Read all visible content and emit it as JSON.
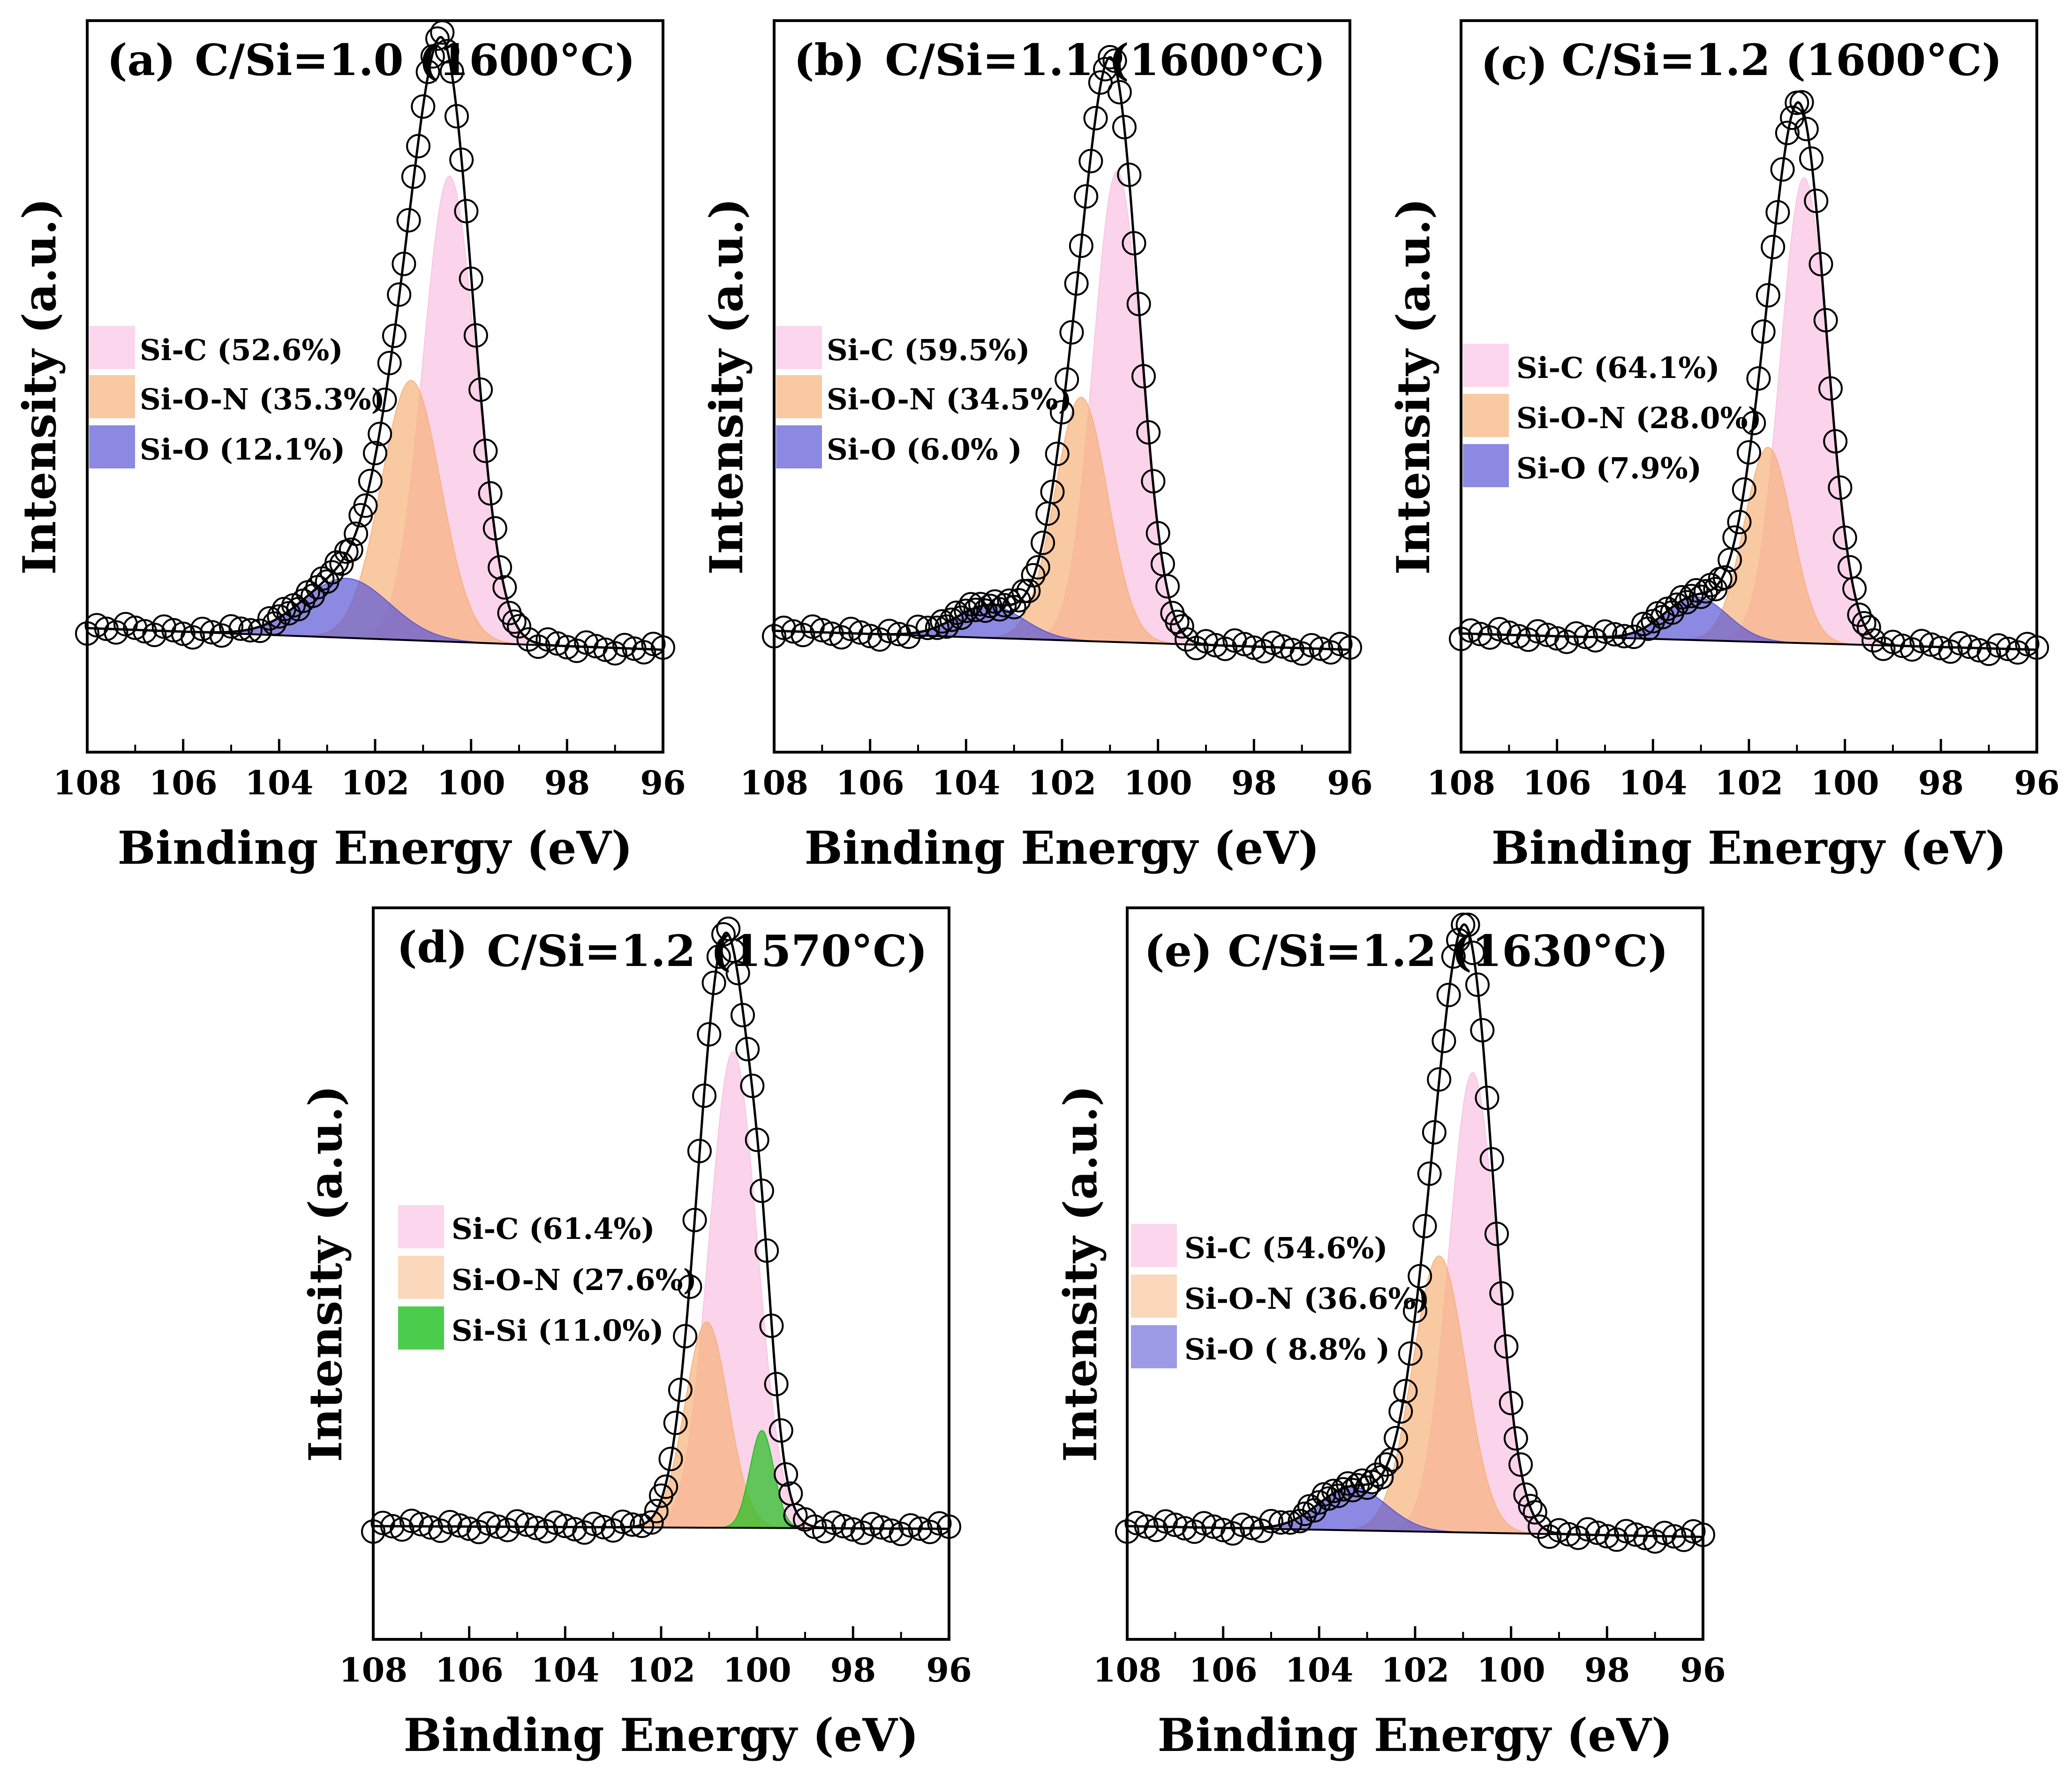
{
  "figure": {
    "shared": {
      "xlabel": "Binding Energy (eV)",
      "ylabel": "Intensity (a.u.)",
      "x_ticks": [
        "108",
        "106",
        "104",
        "102",
        "100",
        "98",
        "96"
      ],
      "xlim": [
        108,
        96
      ]
    },
    "colors": {
      "Si-C": "#f9c4e4",
      "Si-O-N": "#f7b27a",
      "Si-O": "#5b57d6",
      "Si-Si": "#1fbf1f",
      "fit": "#000000",
      "data": "#000000"
    }
  },
  "chart_data": [
    {
      "type": "line",
      "panel": "(a)",
      "title": "C/Si=1.0 (1600°C)",
      "xlabel": "Binding Energy (eV)",
      "ylabel": "Intensity (a.u.)",
      "xlim": [
        108,
        96
      ],
      "peak_x": 100.6,
      "baseline_left": 0.04,
      "baseline_right": 0.0,
      "components": [
        {
          "name": "Si-C",
          "label": "Si-C (52.6%)",
          "center": 100.45,
          "height": 0.86,
          "sigma": 0.55
        },
        {
          "name": "Si-O-N",
          "label": "Si-O-N (35.3%)",
          "center": 101.25,
          "height": 0.48,
          "sigma": 0.62
        },
        {
          "name": "Si-O",
          "label": "Si-O (12.1%)",
          "center": 102.6,
          "height": 0.11,
          "sigma": 0.9
        }
      ]
    },
    {
      "type": "line",
      "panel": "(b)",
      "title": "C/Si=1.1 (1600°C)",
      "xlabel": "Binding Energy (eV)",
      "ylabel": "Intensity (a.u.)",
      "xlim": [
        108,
        96
      ],
      "peak_x": 100.9,
      "baseline_left": 0.035,
      "baseline_right": 0.0,
      "components": [
        {
          "name": "Si-C",
          "label": "Si-C (59.5%)",
          "center": 100.85,
          "height": 0.87,
          "sigma": 0.5
        },
        {
          "name": "Si-O-N",
          "label": "Si-O-N (34.5%)",
          "center": 101.6,
          "height": 0.45,
          "sigma": 0.55
        },
        {
          "name": "Si-O",
          "label": "Si-O (6.0% )",
          "center": 103.5,
          "height": 0.06,
          "sigma": 0.7
        }
      ]
    },
    {
      "type": "line",
      "panel": "(c)",
      "title": "C/Si=1.2 (1600°C)",
      "xlabel": "Binding Energy (eV)",
      "ylabel": "Intensity (a.u.)",
      "xlim": [
        108,
        96
      ],
      "peak_x": 100.9,
      "baseline_left": 0.03,
      "baseline_right": 0.0,
      "components": [
        {
          "name": "Si-C",
          "label": "Si-C (64.1%)",
          "center": 100.85,
          "height": 0.86,
          "sigma": 0.5
        },
        {
          "name": "Si-O-N",
          "label": "Si-O-N (28.0%)",
          "center": 101.6,
          "height": 0.36,
          "sigma": 0.5
        },
        {
          "name": "Si-O",
          "label": "Si-O (7.9%)",
          "center": 103.1,
          "height": 0.08,
          "sigma": 0.65
        }
      ]
    },
    {
      "type": "line",
      "panel": "(d)",
      "title": "C/Si=1.2 (1570°C)",
      "xlabel": "Binding Energy (eV)",
      "ylabel": "Intensity (a.u.)",
      "xlim": [
        108,
        96
      ],
      "peak_x": 100.5,
      "baseline_left": 0.02,
      "baseline_right": 0.015,
      "components": [
        {
          "name": "Si-C",
          "label": "Si-C (61.4%)",
          "center": 100.5,
          "height": 0.88,
          "sigma": 0.5
        },
        {
          "name": "Si-O-N",
          "label": "Si-O-N (27.6%)",
          "center": 101.05,
          "height": 0.38,
          "sigma": 0.45
        },
        {
          "name": "Si-Si",
          "label": "Si-Si (11.0%)",
          "center": 99.9,
          "height": 0.18,
          "sigma": 0.25
        }
      ]
    },
    {
      "type": "line",
      "panel": "(e)",
      "title": "C/Si=1.2 (1630°C)",
      "xlabel": "Binding Energy (eV)",
      "ylabel": "Intensity (a.u.)",
      "xlim": [
        108,
        96
      ],
      "peak_x": 100.9,
      "baseline_left": 0.02,
      "baseline_right": 0.0,
      "components": [
        {
          "name": "Si-C",
          "label": "Si-C (54.6%)",
          "center": 100.8,
          "height": 0.85,
          "sigma": 0.5
        },
        {
          "name": "Si-O-N",
          "label": "Si-O-N (36.6%)",
          "center": 101.5,
          "height": 0.51,
          "sigma": 0.55
        },
        {
          "name": "Si-O",
          "label": "Si-O ( 8.8% )",
          "center": 103.3,
          "height": 0.08,
          "sigma": 0.7
        }
      ]
    }
  ]
}
